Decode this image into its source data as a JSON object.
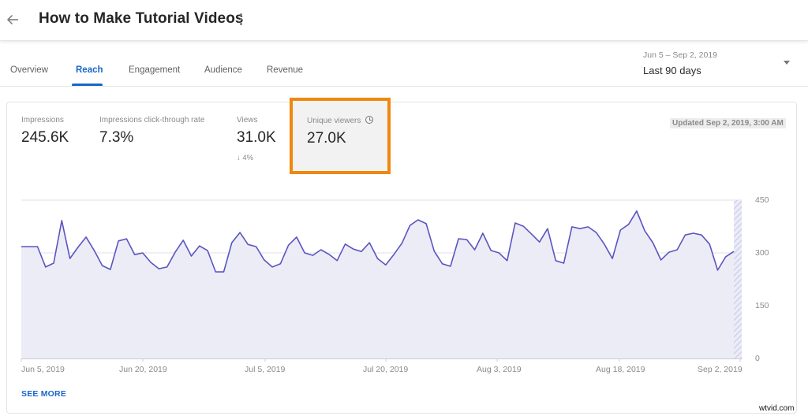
{
  "header": {
    "back_icon": "arrow-left-icon",
    "title": "How to Make Tutorial Videos",
    "more_icon": "more-vert-icon"
  },
  "tabs": [
    {
      "label": "Overview",
      "active": false
    },
    {
      "label": "Reach",
      "active": true
    },
    {
      "label": "Engagement",
      "active": false
    },
    {
      "label": "Audience",
      "active": false
    },
    {
      "label": "Revenue",
      "active": false
    }
  ],
  "date_range": {
    "range": "Jun 5 – Sep 2, 2019",
    "selected": "Last 90 days",
    "caret_icon": "dropdown-caret-icon"
  },
  "metrics": [
    {
      "label": "Impressions",
      "value": "245.6K"
    },
    {
      "label": "Impressions click-through rate",
      "value": "7.3%"
    },
    {
      "label": "Views",
      "value": "31.0K",
      "delta": "4%",
      "delta_direction": "down"
    },
    {
      "label": "Unique viewers",
      "value": "27.0K",
      "icon": "clock-icon",
      "highlighted": true
    }
  ],
  "updated_label": "Updated Sep 2, 2019, 3:00 AM",
  "see_more_label": "SEE MORE",
  "watermark": "wtvid.com",
  "colors": {
    "accent": "#1a66c8",
    "line": "#5a55c0",
    "fill": "#ececf7",
    "highlight": "#f0870f"
  },
  "chart_data": {
    "type": "area",
    "title": "Unique viewers",
    "xlabel": "",
    "ylabel": "",
    "ylim": [
      0,
      450
    ],
    "yticks": [
      0,
      150,
      300,
      450
    ],
    "xticks": [
      "Jun 5, 2019",
      "Jun 20, 2019",
      "Jul 5, 2019",
      "Jul 20, 2019",
      "Aug 3, 2019",
      "Aug 18, 2019",
      "Sep 2, 2019"
    ],
    "grid": true,
    "legend": "none",
    "x_start": "Jun 5, 2019",
    "x_end": "Sep 2, 2019",
    "values": [
      318,
      318,
      318,
      260,
      271,
      392,
      284,
      316,
      345,
      307,
      264,
      253,
      334,
      340,
      295,
      300,
      273,
      255,
      260,
      302,
      336,
      291,
      320,
      307,
      246,
      246,
      329,
      358,
      324,
      318,
      280,
      260,
      269,
      322,
      345,
      300,
      293,
      309,
      296,
      278,
      325,
      311,
      304,
      329,
      284,
      266,
      295,
      327,
      378,
      394,
      383,
      305,
      269,
      262,
      340,
      338,
      309,
      356,
      307,
      300,
      278,
      385,
      376,
      354,
      331,
      369,
      278,
      271,
      374,
      369,
      374,
      358,
      325,
      284,
      365,
      381,
      419,
      363,
      329,
      280,
      302,
      309,
      351,
      356,
      351,
      325,
      251,
      289,
      304
    ]
  }
}
